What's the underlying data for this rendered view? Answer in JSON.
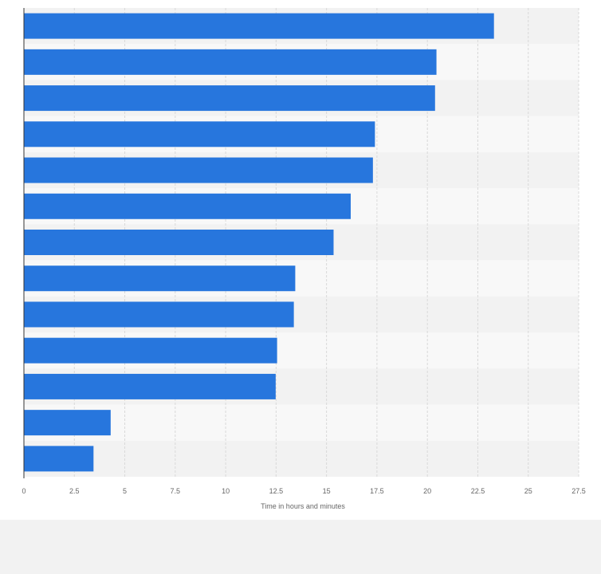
{
  "chart_data": {
    "type": "bar",
    "orientation": "horizontal",
    "categories": [
      "",
      "",
      "",
      "",
      "",
      "",
      "",
      "",
      "",
      "",
      "",
      "",
      ""
    ],
    "values": [
      23.3,
      20.45,
      20.38,
      17.4,
      17.3,
      16.2,
      15.35,
      13.45,
      13.38,
      12.55,
      12.48,
      4.3,
      3.45
    ],
    "xlabel": "Time in hours and minutes",
    "ylabel": "",
    "xlim": [
      0,
      27.5
    ],
    "xticks": [
      0,
      2.5,
      5,
      7.5,
      10,
      12.5,
      15,
      17.5,
      20,
      22.5,
      25,
      27.5
    ],
    "xtick_labels": [
      "0",
      "2.5",
      "5",
      "7.5",
      "10",
      "12.5",
      "15",
      "17.5",
      "20",
      "22.5",
      "25",
      "27.5"
    ],
    "grid": "vertical dashed",
    "legend": "none",
    "bar_color": "#2776dd",
    "band_colors": [
      "#f2f2f2",
      "#f8f8f8"
    ]
  }
}
